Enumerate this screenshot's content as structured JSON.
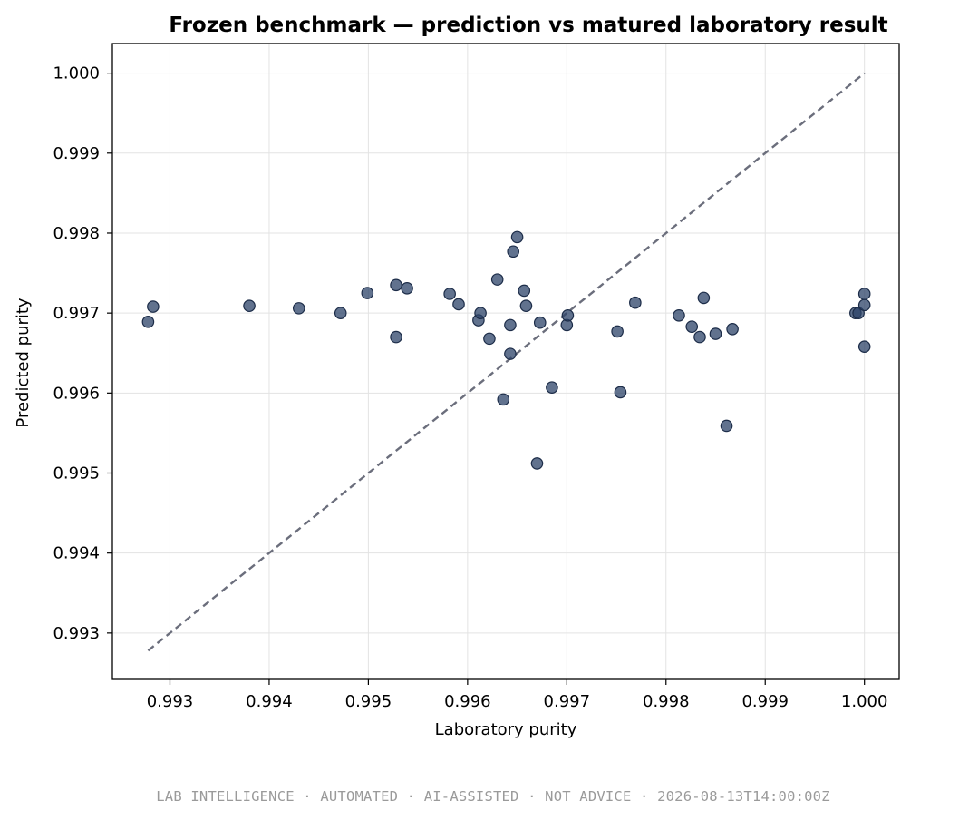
{
  "chart_data": {
    "type": "scatter",
    "title": "Frozen benchmark — prediction vs matured laboratory result",
    "xlabel": "Laboratory purity",
    "ylabel": "Predicted purity",
    "xlim": [
      0.99242,
      1.00035
    ],
    "ylim": [
      0.99242,
      1.00037
    ],
    "xticks": [
      "0.993",
      "0.994",
      "0.995",
      "0.996",
      "0.997",
      "0.998",
      "0.999",
      "1.000"
    ],
    "yticks": [
      "0.993",
      "0.994",
      "0.995",
      "0.996",
      "0.997",
      "0.998",
      "0.999",
      "1.000"
    ],
    "grid": true,
    "reference_line": {
      "from": [
        0.99278,
        0.99278
      ],
      "to": [
        1.0,
        1.0
      ],
      "style": "dashed",
      "color": "#6b6e7c"
    },
    "marker_color": "#2c4368",
    "points": [
      [
        0.99278,
        0.99689
      ],
      [
        0.99283,
        0.99708
      ],
      [
        0.9938,
        0.99709
      ],
      [
        0.9943,
        0.99706
      ],
      [
        0.99472,
        0.997
      ],
      [
        0.99499,
        0.99725
      ],
      [
        0.99528,
        0.99735
      ],
      [
        0.99528,
        0.9967
      ],
      [
        0.99539,
        0.99731
      ],
      [
        0.99582,
        0.99724
      ],
      [
        0.99591,
        0.99711
      ],
      [
        0.99611,
        0.99691
      ],
      [
        0.99613,
        0.997
      ],
      [
        0.99622,
        0.99668
      ],
      [
        0.9963,
        0.99742
      ],
      [
        0.99636,
        0.99592
      ],
      [
        0.99643,
        0.99685
      ],
      [
        0.99643,
        0.99649
      ],
      [
        0.99646,
        0.99777
      ],
      [
        0.9965,
        0.99795
      ],
      [
        0.99657,
        0.99728
      ],
      [
        0.99659,
        0.99709
      ],
      [
        0.9967,
        0.99512
      ],
      [
        0.99673,
        0.99688
      ],
      [
        0.99685,
        0.99607
      ],
      [
        0.997,
        0.99685
      ],
      [
        0.99701,
        0.99697
      ],
      [
        0.99751,
        0.99677
      ],
      [
        0.99754,
        0.99601
      ],
      [
        0.99769,
        0.99713
      ],
      [
        0.99813,
        0.99697
      ],
      [
        0.99826,
        0.99683
      ],
      [
        0.99834,
        0.9967
      ],
      [
        0.99838,
        0.99719
      ],
      [
        0.9985,
        0.99674
      ],
      [
        0.99861,
        0.99559
      ],
      [
        0.99867,
        0.9968
      ],
      [
        0.99991,
        0.997
      ],
      [
        0.99994,
        0.997
      ],
      [
        1.0,
        0.99724
      ],
      [
        1.0,
        0.9971
      ],
      [
        1.0,
        0.99658
      ]
    ]
  },
  "footer": {
    "text": "LAB INTELLIGENCE · AUTOMATED · AI-ASSISTED · NOT ADVICE · 2026-08-13T14:00:00Z"
  }
}
